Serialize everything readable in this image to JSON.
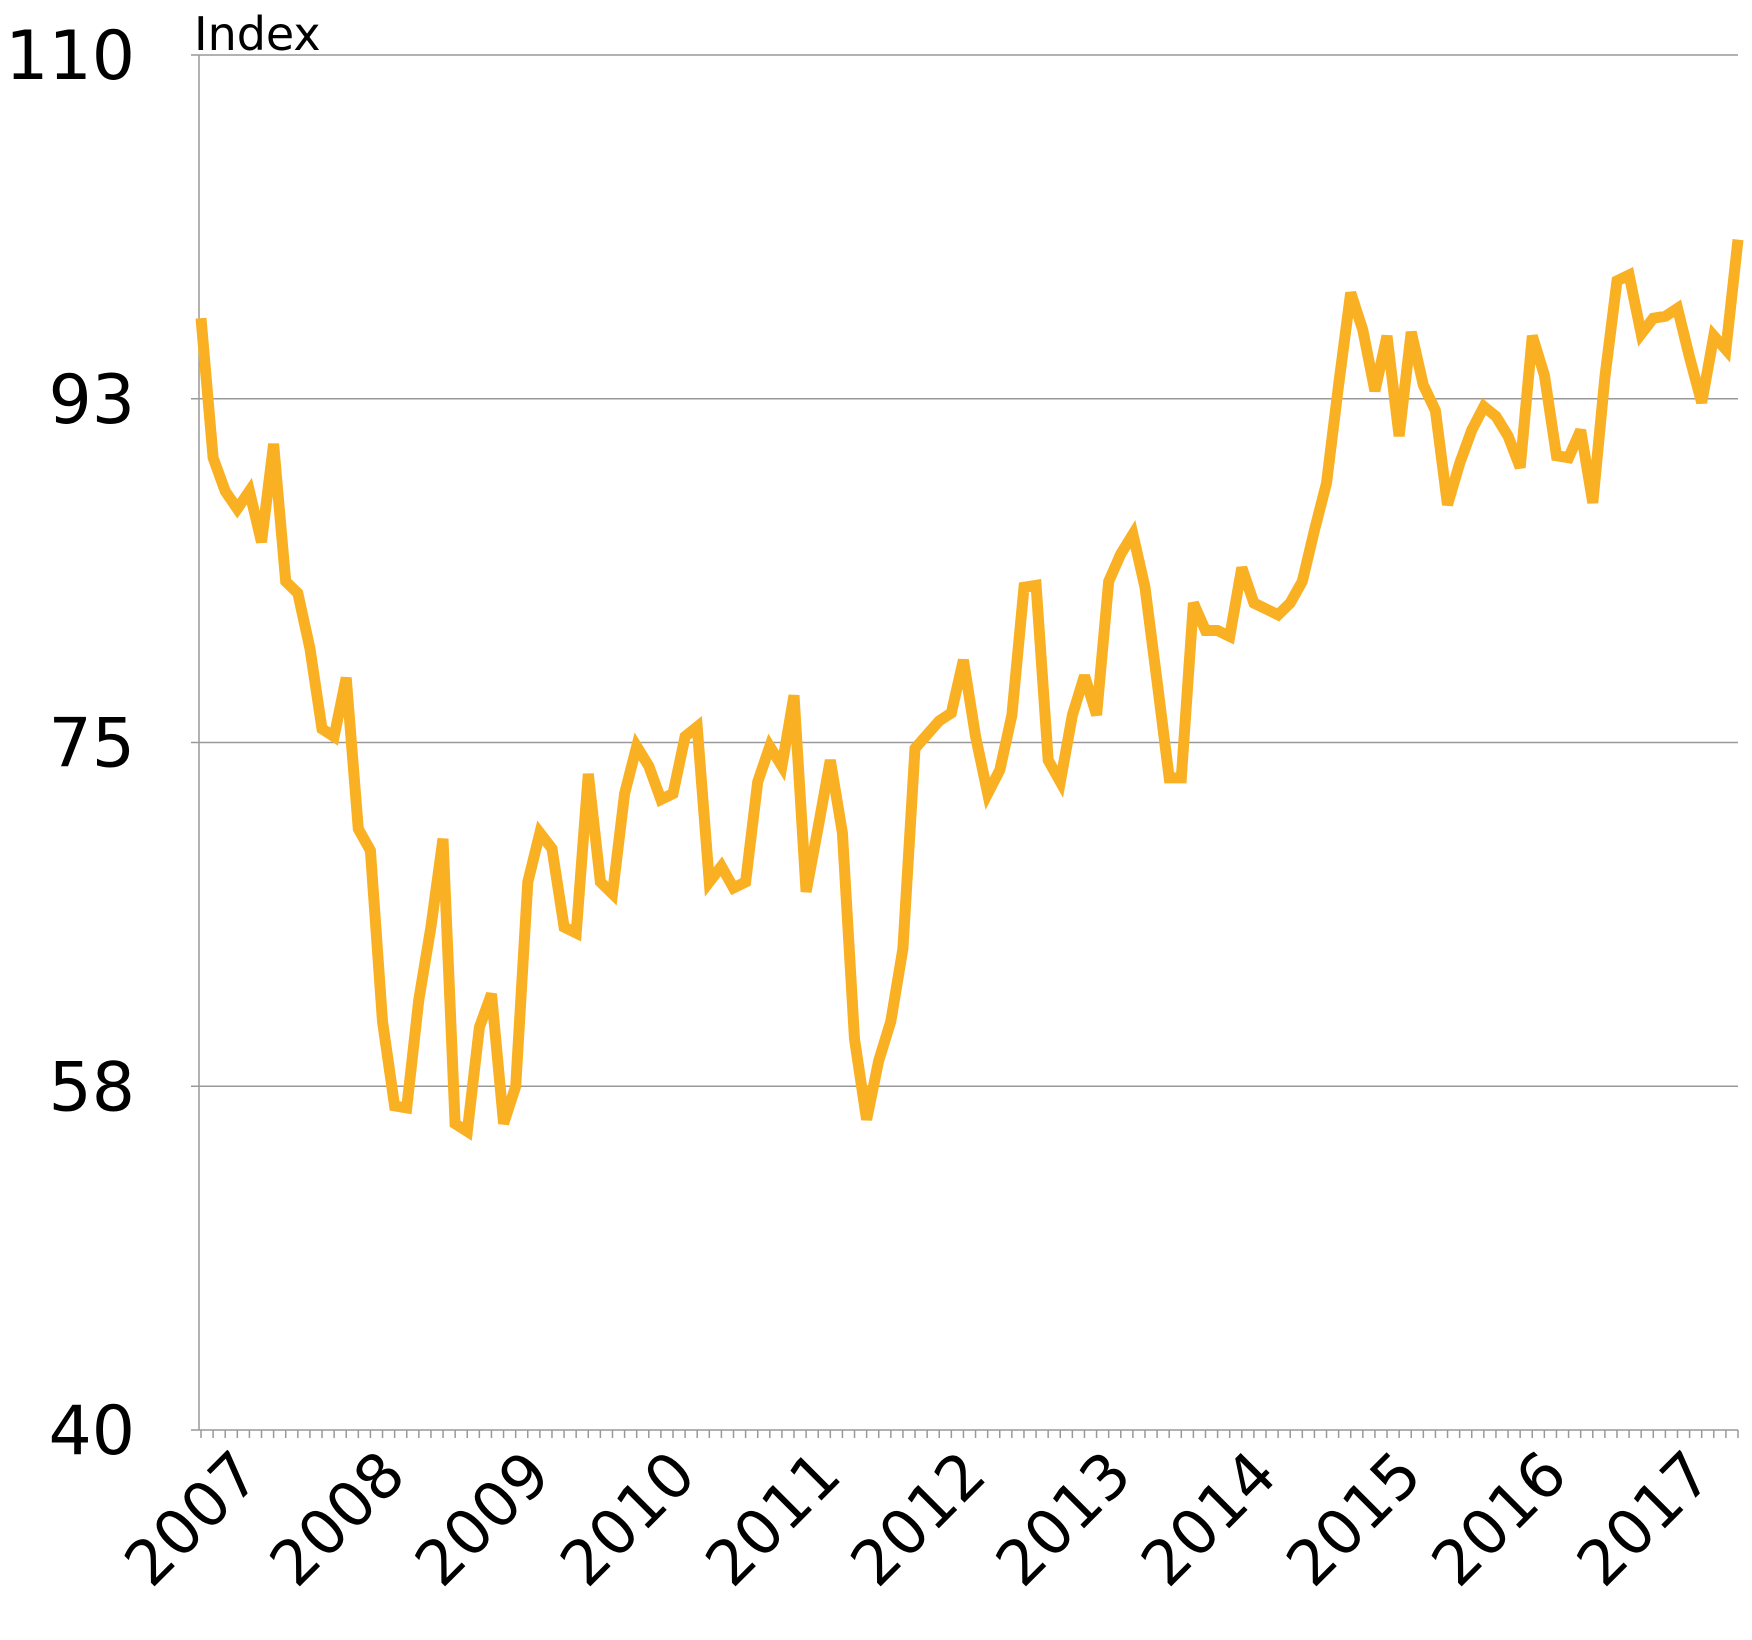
{
  "chart_data": {
    "type": "line",
    "y_label": "Index",
    "categories": [
      "2007",
      null,
      null,
      null,
      null,
      null,
      null,
      null,
      null,
      null,
      null,
      null,
      "2008",
      null,
      null,
      null,
      null,
      null,
      null,
      null,
      null,
      null,
      null,
      null,
      "2009",
      null,
      null,
      null,
      null,
      null,
      null,
      null,
      null,
      null,
      null,
      null,
      "2010",
      null,
      null,
      null,
      null,
      null,
      null,
      null,
      null,
      null,
      null,
      null,
      "2011",
      null,
      null,
      null,
      null,
      null,
      null,
      null,
      null,
      null,
      null,
      null,
      "2012",
      null,
      null,
      null,
      null,
      null,
      null,
      null,
      null,
      null,
      null,
      null,
      "2013",
      null,
      null,
      null,
      null,
      null,
      null,
      null,
      null,
      null,
      null,
      null,
      "2014",
      null,
      null,
      null,
      null,
      null,
      null,
      null,
      null,
      null,
      null,
      null,
      "2015",
      null,
      null,
      null,
      null,
      null,
      null,
      null,
      null,
      null,
      null,
      null,
      "2016",
      null,
      null,
      null,
      null,
      null,
      null,
      null,
      null,
      null,
      null,
      null,
      "2017",
      null,
      null,
      null,
      null,
      null,
      null,
      null
    ],
    "series": [
      {
        "color": "#f9b022",
        "values": [
          96.6,
          89.5,
          87.8,
          86.9,
          87.8,
          85.2,
          90.2,
          83.2,
          82.6,
          79.8,
          75.7,
          75.3,
          78.3,
          70.6,
          69.5,
          60.8,
          56.5,
          56.4,
          61.9,
          65.6,
          70.1,
          55.6,
          55.2,
          60.5,
          62.2,
          55.6,
          57.5,
          67.9,
          70.4,
          69.6,
          65.6,
          65.3,
          73.4,
          67.9,
          67.3,
          72.4,
          74.8,
          73.8,
          72.1,
          72.4,
          75.3,
          75.8,
          67.9,
          68.7,
          67.6,
          67.9,
          73.0,
          74.8,
          73.8,
          77.4,
          67.4,
          70.7,
          74.1,
          70.4,
          59.9,
          55.8,
          58.8,
          60.8,
          64.5,
          74.7,
          75.4,
          76.1,
          76.5,
          79.2,
          75.3,
          72.4,
          73.6,
          76.4,
          82.9,
          83.0,
          74.1,
          73.0,
          76.4,
          78.4,
          76.4,
          83.2,
          84.6,
          85.6,
          82.9,
          78.1,
          73.2,
          73.2,
          82.1,
          80.7,
          80.7,
          80.4,
          83.9,
          82.1,
          81.8,
          81.5,
          82.1,
          83.2,
          85.8,
          88.2,
          93.2,
          97.9,
          96.0,
          92.9,
          95.7,
          90.6,
          95.9,
          93.2,
          91.9,
          87.1,
          89.2,
          90.9,
          92.1,
          91.6,
          90.6,
          89.0,
          95.7,
          93.7,
          89.6,
          89.5,
          90.9,
          87.2,
          93.6,
          98.5,
          98.8,
          95.8,
          96.6,
          96.7,
          97.1,
          94.6,
          92.3,
          95.7,
          95.0,
          100.6
        ]
      }
    ],
    "ylim": [
      40,
      110
    ],
    "yticks": [
      40,
      {
        "value": 57.5,
        "label": "58"
      },
      75,
      {
        "value": 92.5,
        "label": "93"
      },
      110
    ],
    "grid": true
  }
}
